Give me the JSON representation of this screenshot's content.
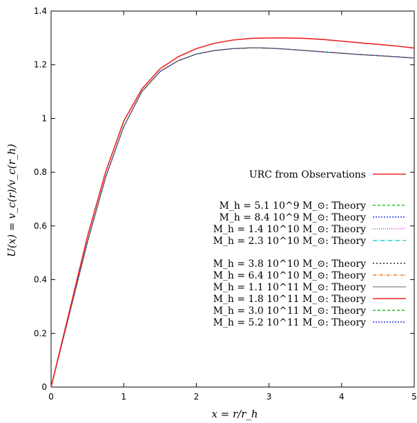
{
  "chart_data": {
    "type": "line",
    "title": "",
    "xlabel": "x = r/r_h",
    "ylabel": "U(x) = v_c(r)/v_c(r_h)",
    "xlim": [
      0,
      5
    ],
    "ylim": [
      0,
      1.4
    ],
    "x_ticks": [
      "0",
      "1",
      "2",
      "3",
      "4",
      "5"
    ],
    "y_ticks": [
      "0",
      "0.2",
      "0.4",
      "0.6",
      "0.8",
      "1",
      "1.2",
      "1.4"
    ],
    "grid": false,
    "legend_position": "center-right",
    "x": [
      0,
      0.25,
      0.5,
      0.75,
      1.0,
      1.25,
      1.5,
      1.75,
      2.0,
      2.25,
      2.5,
      2.75,
      3.0,
      3.25,
      3.5,
      3.75,
      4.0,
      4.25,
      4.5,
      4.75,
      5.0
    ],
    "series": [
      {
        "name": "URC from Observations",
        "color": "#ee2222",
        "dash": "",
        "values": [
          0,
          0.28,
          0.56,
          0.8,
          0.99,
          1.11,
          1.185,
          1.23,
          1.26,
          1.28,
          1.292,
          1.298,
          1.3,
          1.3,
          1.298,
          1.294,
          1.288,
          1.282,
          1.276,
          1.27,
          1.262
        ]
      },
      {
        "name": "M_h = 5.1 10^9 M_sun: Theory",
        "color": "#22cc22",
        "dash": "4,3",
        "values": [
          0,
          0.27,
          0.54,
          0.78,
          0.97,
          1.1,
          1.175,
          1.215,
          1.24,
          1.253,
          1.26,
          1.263,
          1.262,
          1.258,
          1.253,
          1.248,
          1.243,
          1.238,
          1.234,
          1.23,
          1.225
        ]
      },
      {
        "name": "M_h = 8.4 10^9 M_sun: Theory",
        "color": "#2233dd",
        "dash": "2,2",
        "values": [
          0,
          0.27,
          0.54,
          0.78,
          0.97,
          1.1,
          1.175,
          1.215,
          1.24,
          1.253,
          1.26,
          1.263,
          1.262,
          1.258,
          1.253,
          1.248,
          1.243,
          1.238,
          1.234,
          1.23,
          1.225
        ]
      },
      {
        "name": "M_h = 1.4 10^10 M_sun: Theory",
        "color": "#dd22dd",
        "dash": "1,2",
        "values": [
          0,
          0.27,
          0.54,
          0.78,
          0.97,
          1.1,
          1.175,
          1.215,
          1.24,
          1.253,
          1.26,
          1.263,
          1.262,
          1.258,
          1.253,
          1.248,
          1.243,
          1.238,
          1.234,
          1.23,
          1.225
        ]
      },
      {
        "name": "M_h = 2.3 10^10 M_sun: Theory",
        "color": "#22cccc",
        "dash": "6,2,1,2",
        "values": [
          0,
          0.27,
          0.54,
          0.78,
          0.97,
          1.1,
          1.175,
          1.215,
          1.24,
          1.253,
          1.26,
          1.263,
          1.262,
          1.258,
          1.253,
          1.248,
          1.243,
          1.238,
          1.234,
          1.23,
          1.225
        ]
      },
      {
        "name": "M_h = 3.8 10^10 M_sun: Theory",
        "color": "#222222",
        "dash": "2,3",
        "values": [
          0,
          0.27,
          0.54,
          0.78,
          0.97,
          1.1,
          1.175,
          1.215,
          1.24,
          1.253,
          1.26,
          1.263,
          1.262,
          1.258,
          1.253,
          1.248,
          1.243,
          1.238,
          1.234,
          1.23,
          1.225
        ]
      },
      {
        "name": "M_h = 6.4 10^10 M_sun: Theory",
        "color": "#ee7722",
        "dash": "5,2,1,2",
        "values": [
          0,
          0.27,
          0.54,
          0.78,
          0.97,
          1.1,
          1.175,
          1.215,
          1.24,
          1.253,
          1.26,
          1.263,
          1.262,
          1.258,
          1.253,
          1.248,
          1.243,
          1.238,
          1.234,
          1.23,
          1.225
        ]
      },
      {
        "name": "M_h = 1.1 10^11 M_sun: Theory",
        "color": "#999999",
        "dash": "",
        "values": [
          0,
          0.27,
          0.54,
          0.78,
          0.97,
          1.1,
          1.175,
          1.215,
          1.24,
          1.253,
          1.26,
          1.263,
          1.262,
          1.258,
          1.253,
          1.248,
          1.243,
          1.238,
          1.234,
          1.23,
          1.225
        ]
      },
      {
        "name": "M_h = 1.8 10^11 M_sun: Theory",
        "color": "#ee2222",
        "dash": "",
        "values": [
          0,
          0.27,
          0.54,
          0.78,
          0.97,
          1.1,
          1.175,
          1.215,
          1.24,
          1.253,
          1.26,
          1.263,
          1.262,
          1.258,
          1.253,
          1.248,
          1.243,
          1.238,
          1.234,
          1.23,
          1.225
        ]
      },
      {
        "name": "M_h = 3.0 10^11 M_sun: Theory",
        "color": "#22bb22",
        "dash": "4,3",
        "values": [
          0,
          0.27,
          0.54,
          0.78,
          0.97,
          1.1,
          1.175,
          1.215,
          1.24,
          1.253,
          1.26,
          1.263,
          1.262,
          1.258,
          1.253,
          1.248,
          1.243,
          1.238,
          1.234,
          1.23,
          1.225
        ]
      },
      {
        "name": "M_h = 5.2 10^11 M_sun: Theory",
        "color": "#2233dd",
        "dash": "2,2",
        "values": [
          0,
          0.27,
          0.54,
          0.78,
          0.97,
          1.1,
          1.175,
          1.215,
          1.24,
          1.253,
          1.26,
          1.263,
          1.262,
          1.258,
          1.253,
          1.248,
          1.243,
          1.238,
          1.234,
          1.23,
          1.225
        ]
      }
    ],
    "legend": {
      "entries": [
        {
          "text": "URC from Observations",
          "color": "#ee2222",
          "dash": ""
        },
        {
          "text": "M_h = 5.1 10^9 M_⊙: Theory",
          "color": "#22cc22",
          "dash": "4,3"
        },
        {
          "text": "M_h = 8.4 10^9 M_⊙: Theory",
          "color": "#2233dd",
          "dash": "2,2"
        },
        {
          "text": "M_h = 1.4 10^10 M_⊙: Theory",
          "color": "#dd22dd",
          "dash": "1,2"
        },
        {
          "text": "M_h = 2.3 10^10 M_⊙: Theory",
          "color": "#22cccc",
          "dash": "6,2,1,2"
        },
        {
          "text": "M_h = 3.8 10^10 M_⊙: Theory",
          "color": "#222222",
          "dash": "2,3"
        },
        {
          "text": "M_h = 6.4 10^10 M_⊙: Theory",
          "color": "#ee7722",
          "dash": "5,2,1,2"
        },
        {
          "text": "M_h = 1.1 10^11 M_⊙: Theory",
          "color": "#999999",
          "dash": ""
        },
        {
          "text": "M_h = 1.8 10^11 M_⊙: Theory",
          "color": "#ee2222",
          "dash": ""
        },
        {
          "text": "M_h = 3.0 10^11 M_⊙: Theory",
          "color": "#22bb22",
          "dash": "4,3"
        },
        {
          "text": "M_h = 5.2 10^11 M_⊙: Theory",
          "color": "#2233dd",
          "dash": "2,2"
        }
      ]
    }
  }
}
